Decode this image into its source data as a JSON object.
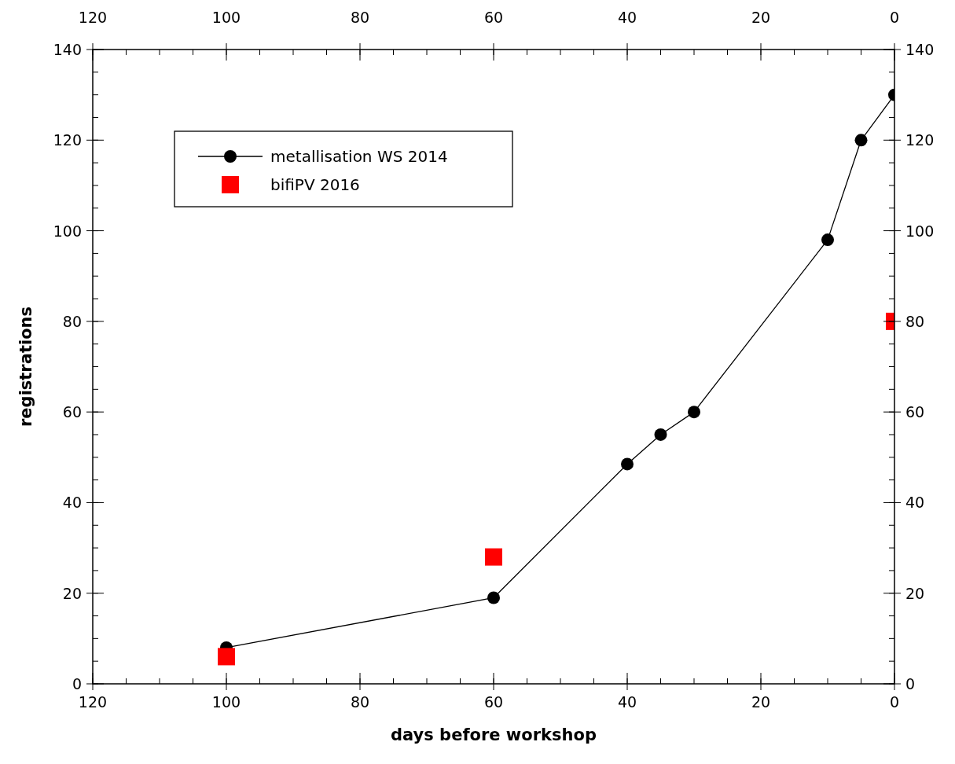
{
  "chart_data": {
    "type": "line",
    "xlabel": "days before workshop",
    "ylabel": "registrations",
    "xlim": [
      120,
      0
    ],
    "xticks": [
      120,
      100,
      80,
      60,
      40,
      20,
      0
    ],
    "x2lim": [
      120,
      0
    ],
    "x2ticks": [
      120,
      100,
      80,
      60,
      40,
      20,
      0
    ],
    "ylim": [
      0,
      140
    ],
    "yticks": [
      0,
      20,
      40,
      60,
      80,
      100,
      120,
      140
    ],
    "y2lim": [
      0,
      140
    ],
    "y2ticks": [
      0,
      20,
      40,
      60,
      80,
      100,
      120,
      140
    ],
    "grid": false,
    "legend": "top left",
    "series": [
      {
        "name": "metallisation WS 2014",
        "type": "line",
        "color": "#000000",
        "marker": "circle",
        "line_style": "solid",
        "x": [
          100,
          60,
          40,
          35,
          30,
          10,
          5,
          0
        ],
        "values": [
          8,
          19,
          48.5,
          55,
          60,
          98,
          120,
          130
        ]
      },
      {
        "name": "bifiPV 2016",
        "type": "scatter",
        "color": "#ff0000",
        "marker": "square",
        "x": [
          100,
          60,
          0
        ],
        "values": [
          6,
          28,
          80
        ]
      }
    ]
  }
}
